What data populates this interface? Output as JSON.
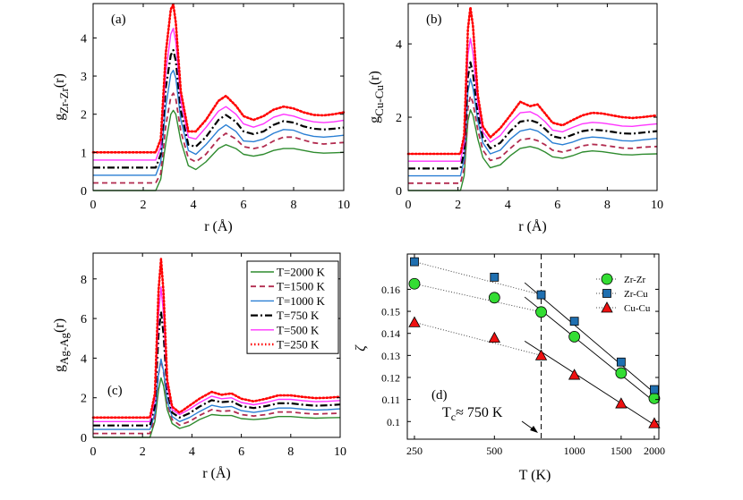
{
  "chart_data": [
    {
      "type": "line",
      "panel_label": "(a)",
      "title": "",
      "xlabel": "r (Å)",
      "ylabel": "g_{Zr-Zr}(r)",
      "ylabel_main": "g",
      "ylabel_sub": "Zr-Zr",
      "ylabel_tail": "(r)",
      "xlim": [
        0,
        10
      ],
      "ylim": [
        0,
        4.9
      ],
      "xticks": [
        0,
        2,
        4,
        6,
        8,
        10
      ],
      "yticks": [
        0,
        1,
        2,
        3,
        4
      ],
      "x": [
        0,
        2.5,
        2.7,
        2.9,
        3.1,
        3.2,
        3.3,
        3.5,
        3.8,
        4.1,
        4.5,
        5.0,
        5.3,
        5.7,
        6.0,
        6.4,
        6.8,
        7.2,
        7.6,
        8.0,
        8.4,
        8.8,
        9.2,
        9.6,
        10.0
      ],
      "series": [
        {
          "name": "T=2000 K",
          "color": "#2e8b2e",
          "style": "solid",
          "width": 1.4,
          "values": [
            0,
            0,
            0.3,
            1.25,
            2.0,
            2.1,
            2.0,
            1.3,
            0.65,
            0.55,
            0.75,
            1.1,
            1.2,
            1.1,
            0.95,
            0.9,
            0.95,
            1.05,
            1.1,
            1.1,
            1.05,
            1.0,
            0.98,
            0.99,
            1.0
          ]
        },
        {
          "name": "T=1500 K",
          "color": "#b22b4f",
          "style": "dashed",
          "width": 1.8,
          "values": [
            0.2,
            0.2,
            0.45,
            1.7,
            2.45,
            2.55,
            2.4,
            1.55,
            0.85,
            0.75,
            0.95,
            1.35,
            1.5,
            1.35,
            1.15,
            1.1,
            1.15,
            1.3,
            1.4,
            1.4,
            1.32,
            1.25,
            1.22,
            1.24,
            1.26
          ]
        },
        {
          "name": "T=1000 K",
          "color": "#2a7fd4",
          "style": "solid",
          "width": 1.4,
          "values": [
            0.4,
            0.4,
            0.75,
            2.2,
            3.05,
            3.15,
            2.95,
            1.85,
            1.05,
            0.95,
            1.2,
            1.58,
            1.72,
            1.55,
            1.3,
            1.28,
            1.35,
            1.5,
            1.6,
            1.58,
            1.48,
            1.42,
            1.4,
            1.42,
            1.45
          ]
        },
        {
          "name": "T=750 K",
          "color": "#000000",
          "style": "dashdot",
          "width": 2.2,
          "values": [
            0.6,
            0.6,
            0.95,
            2.7,
            3.55,
            3.68,
            3.4,
            2.1,
            1.2,
            1.15,
            1.4,
            1.85,
            1.98,
            1.8,
            1.55,
            1.48,
            1.55,
            1.72,
            1.82,
            1.78,
            1.68,
            1.62,
            1.6,
            1.62,
            1.65
          ]
        },
        {
          "name": "T=500 K",
          "color": "#ff33ff",
          "style": "solid",
          "width": 1.4,
          "values": [
            0.8,
            0.8,
            1.15,
            3.1,
            4.1,
            4.25,
            3.9,
            2.35,
            1.4,
            1.35,
            1.65,
            2.08,
            2.2,
            2.0,
            1.75,
            1.66,
            1.75,
            1.92,
            2.0,
            1.95,
            1.86,
            1.8,
            1.78,
            1.8,
            1.84
          ]
        },
        {
          "name": "T=250 K",
          "color": "#ff0000",
          "style": "dotted",
          "width": 2.6,
          "values": [
            1.0,
            1.0,
            1.35,
            3.6,
            4.75,
            4.88,
            4.4,
            2.6,
            1.55,
            1.55,
            1.85,
            2.35,
            2.48,
            2.22,
            1.95,
            1.85,
            1.95,
            2.12,
            2.2,
            2.15,
            2.05,
            1.98,
            1.97,
            2.0,
            2.05
          ]
        }
      ]
    },
    {
      "type": "line",
      "panel_label": "(b)",
      "title": "",
      "xlabel": "r (Å)",
      "ylabel": "g_{Cu-Cu}(r)",
      "ylabel_main": "g",
      "ylabel_sub": "Cu-Cu",
      "ylabel_tail": "(r)",
      "xlim": [
        0,
        10
      ],
      "ylim": [
        0,
        5.1
      ],
      "xticks": [
        0,
        2,
        4,
        6,
        8,
        10
      ],
      "yticks": [
        0,
        2,
        4
      ],
      "x": [
        0,
        2.1,
        2.25,
        2.4,
        2.5,
        2.6,
        2.8,
        3.0,
        3.3,
        3.7,
        4.1,
        4.5,
        4.9,
        5.2,
        5.5,
        5.8,
        6.2,
        6.6,
        7.0,
        7.4,
        7.8,
        8.2,
        8.6,
        9.0,
        9.4,
        10.0
      ],
      "series": [
        {
          "name": "T=2000 K",
          "color": "#2e8b2e",
          "style": "solid",
          "width": 1.4,
          "values": [
            0,
            0,
            0.4,
            1.9,
            2.2,
            2.05,
            1.4,
            0.9,
            0.62,
            0.7,
            0.95,
            1.15,
            1.2,
            1.15,
            1.05,
            0.92,
            0.88,
            0.95,
            1.05,
            1.08,
            1.06,
            1.02,
            0.98,
            0.97,
            0.99,
            1.0
          ]
        },
        {
          "name": "T=1500 K",
          "color": "#b22b4f",
          "style": "dashed",
          "width": 1.8,
          "values": [
            0.2,
            0.2,
            0.6,
            2.25,
            2.58,
            2.4,
            1.65,
            1.1,
            0.82,
            0.9,
            1.15,
            1.38,
            1.42,
            1.36,
            1.25,
            1.1,
            1.05,
            1.12,
            1.22,
            1.26,
            1.24,
            1.2,
            1.16,
            1.15,
            1.18,
            1.2
          ]
        },
        {
          "name": "T=1000 K",
          "color": "#2a7fd4",
          "style": "solid",
          "width": 1.4,
          "values": [
            0.4,
            0.4,
            0.85,
            2.7,
            3.05,
            2.8,
            1.9,
            1.3,
            1.0,
            1.1,
            1.4,
            1.62,
            1.68,
            1.62,
            1.48,
            1.3,
            1.25,
            1.32,
            1.42,
            1.46,
            1.44,
            1.4,
            1.36,
            1.35,
            1.38,
            1.42
          ]
        },
        {
          "name": "T=750 K",
          "color": "#000000",
          "style": "dashdot",
          "width": 2.2,
          "values": [
            0.6,
            0.6,
            1.05,
            3.1,
            3.5,
            3.2,
            2.1,
            1.45,
            1.15,
            1.3,
            1.62,
            1.88,
            1.92,
            1.85,
            1.68,
            1.48,
            1.42,
            1.52,
            1.62,
            1.66,
            1.64,
            1.6,
            1.56,
            1.55,
            1.58,
            1.62
          ]
        },
        {
          "name": "T=500 K",
          "color": "#ff33ff",
          "style": "solid",
          "width": 1.4,
          "values": [
            0.8,
            0.8,
            1.3,
            3.7,
            4.15,
            3.75,
            2.35,
            1.6,
            1.32,
            1.5,
            1.85,
            2.12,
            2.15,
            2.05,
            1.88,
            1.65,
            1.6,
            1.72,
            1.82,
            1.86,
            1.84,
            1.8,
            1.76,
            1.75,
            1.78,
            1.82
          ]
        },
        {
          "name": "T=250 K",
          "color": "#ff0000",
          "style": "dotted",
          "width": 2.6,
          "values": [
            1.0,
            1.0,
            1.5,
            4.4,
            5.0,
            4.5,
            2.6,
            1.75,
            1.45,
            1.7,
            2.05,
            2.42,
            2.3,
            2.35,
            2.1,
            1.85,
            1.78,
            1.92,
            2.05,
            2.12,
            2.1,
            2.05,
            2.0,
            1.98,
            2.0,
            2.05
          ]
        }
      ]
    },
    {
      "type": "line",
      "panel_label": "(c)",
      "title": "",
      "xlabel": "r (Å)",
      "ylabel": "g_{Ag-Ag}(r)",
      "ylabel_main": "g",
      "ylabel_sub": "Ag-Ag",
      "ylabel_tail": "(r)",
      "xlim": [
        0,
        10
      ],
      "ylim": [
        0,
        9.3
      ],
      "xticks": [
        0,
        2,
        4,
        6,
        8,
        10
      ],
      "yticks": [
        0,
        2,
        4,
        6,
        8
      ],
      "x": [
        0,
        2.3,
        2.5,
        2.65,
        2.75,
        2.85,
        3.0,
        3.2,
        3.5,
        3.9,
        4.3,
        4.8,
        5.2,
        5.6,
        6.0,
        6.5,
        7.0,
        7.5,
        8.0,
        8.5,
        9.0,
        9.5,
        10.0
      ],
      "legend": {
        "position": "top-right",
        "entries": [
          "T=2000 K",
          "T=1500 K",
          "T=1000 K",
          "T=750 K",
          "T=500 K",
          "T=250 K"
        ]
      },
      "series": [
        {
          "name": "T=2000 K",
          "color": "#2e8b2e",
          "style": "solid",
          "width": 1.4,
          "values": [
            0,
            0,
            0.8,
            2.4,
            3.0,
            2.6,
            1.4,
            0.7,
            0.45,
            0.6,
            0.9,
            1.15,
            1.1,
            1.1,
            0.95,
            0.9,
            0.95,
            1.05,
            1.05,
            1.0,
            0.97,
            0.99,
            1.0
          ]
        },
        {
          "name": "T=1500 K",
          "color": "#b22b4f",
          "style": "dashed",
          "width": 1.8,
          "values": [
            0.2,
            0.2,
            1.0,
            3.2,
            3.9,
            3.3,
            1.7,
            0.9,
            0.62,
            0.8,
            1.1,
            1.4,
            1.32,
            1.35,
            1.15,
            1.08,
            1.15,
            1.28,
            1.28,
            1.22,
            1.18,
            1.2,
            1.22
          ]
        },
        {
          "name": "T=1000 K",
          "color": "#2a7fd4",
          "style": "solid",
          "width": 1.4,
          "values": [
            0.4,
            0.4,
            1.2,
            3.2,
            3.95,
            3.35,
            1.85,
            1.05,
            0.8,
            1.0,
            1.3,
            1.62,
            1.52,
            1.56,
            1.35,
            1.26,
            1.35,
            1.48,
            1.48,
            1.42,
            1.38,
            1.4,
            1.44
          ]
        },
        {
          "name": "T=750 K",
          "color": "#000000",
          "style": "dashdot",
          "width": 2.2,
          "values": [
            0.6,
            0.6,
            1.6,
            5.2,
            6.35,
            5.2,
            2.3,
            1.25,
            1.0,
            1.22,
            1.55,
            1.88,
            1.78,
            1.82,
            1.58,
            1.48,
            1.58,
            1.72,
            1.72,
            1.65,
            1.6,
            1.62,
            1.66
          ]
        },
        {
          "name": "T=500 K",
          "color": "#ff33ff",
          "style": "solid",
          "width": 1.4,
          "values": [
            0.8,
            0.8,
            1.9,
            6.2,
            7.6,
            6.2,
            2.6,
            1.4,
            1.15,
            1.42,
            1.75,
            2.08,
            1.95,
            2.0,
            1.76,
            1.65,
            1.76,
            1.92,
            1.92,
            1.85,
            1.8,
            1.82,
            1.86
          ]
        },
        {
          "name": "T=250 K",
          "color": "#ff0000",
          "style": "dotted",
          "width": 2.6,
          "values": [
            1.0,
            1.0,
            2.2,
            7.4,
            9.0,
            7.3,
            2.9,
            1.55,
            1.25,
            1.6,
            1.95,
            2.3,
            2.15,
            2.22,
            1.95,
            1.82,
            1.95,
            2.12,
            2.12,
            2.04,
            1.98,
            2.0,
            2.05
          ]
        }
      ]
    },
    {
      "type": "scatter",
      "panel_label": "(d)",
      "title": "",
      "xlabel": "T (K)",
      "ylabel": "ζ",
      "xscale": "log",
      "xlim": [
        235,
        2080
      ],
      "ylim": [
        0.092,
        0.176
      ],
      "xticks": [
        250,
        500,
        1000,
        1500,
        2000
      ],
      "xtick_labels": [
        "250",
        "500",
        "1000",
        "1500",
        "2000"
      ],
      "yticks": [
        0.1,
        0.11,
        0.12,
        0.13,
        0.14,
        0.15,
        0.16
      ],
      "ytick_labels": [
        "0.1",
        "0.11",
        "0.12",
        "0.13",
        "0.14",
        "0.15",
        "0.16"
      ],
      "x": [
        250,
        500,
        750,
        1000,
        1500,
        2000
      ],
      "legend": {
        "position": "top-right",
        "entries": [
          "Zr-Zr",
          "Zr-Cu",
          "Cu-Cu"
        ]
      },
      "series": [
        {
          "name": "Zr-Zr",
          "marker": "circle",
          "color": "#33dd33",
          "values": [
            0.1625,
            0.1562,
            0.1497,
            0.1385,
            0.122,
            0.1105
          ],
          "fit_low": {
            "T": [
              250,
              750
            ],
            "y": [
              0.1625,
              0.1497
            ]
          },
          "fit_high": {
            "T": [
              650,
              2000
            ],
            "y": [
              0.1565,
              0.109
            ]
          }
        },
        {
          "name": "Zr-Cu",
          "marker": "square",
          "color": "#1f6fb0",
          "values": [
            0.1725,
            0.1655,
            0.1575,
            0.1455,
            0.127,
            0.1145
          ],
          "fit_low": {
            "T": [
              250,
              750
            ],
            "y": [
              0.1725,
              0.1575
            ]
          },
          "fit_high": {
            "T": [
              650,
              2000
            ],
            "y": [
              0.163,
              0.113
            ]
          }
        },
        {
          "name": "Cu-Cu",
          "marker": "triangle",
          "color": "#ee1111",
          "values": [
            0.145,
            0.138,
            0.13,
            0.1212,
            0.1082,
            0.0992
          ],
          "fit_low": {
            "T": [
              250,
              750
            ],
            "y": [
              0.145,
              0.13
            ]
          },
          "fit_high": {
            "T": [
              650,
              2000
            ],
            "y": [
              0.1365,
              0.0985
            ]
          }
        }
      ],
      "vline": {
        "T": 750
      },
      "annotation": {
        "prefix": "T",
        "sub": "c",
        "text": "≈ 750 K"
      }
    }
  ]
}
